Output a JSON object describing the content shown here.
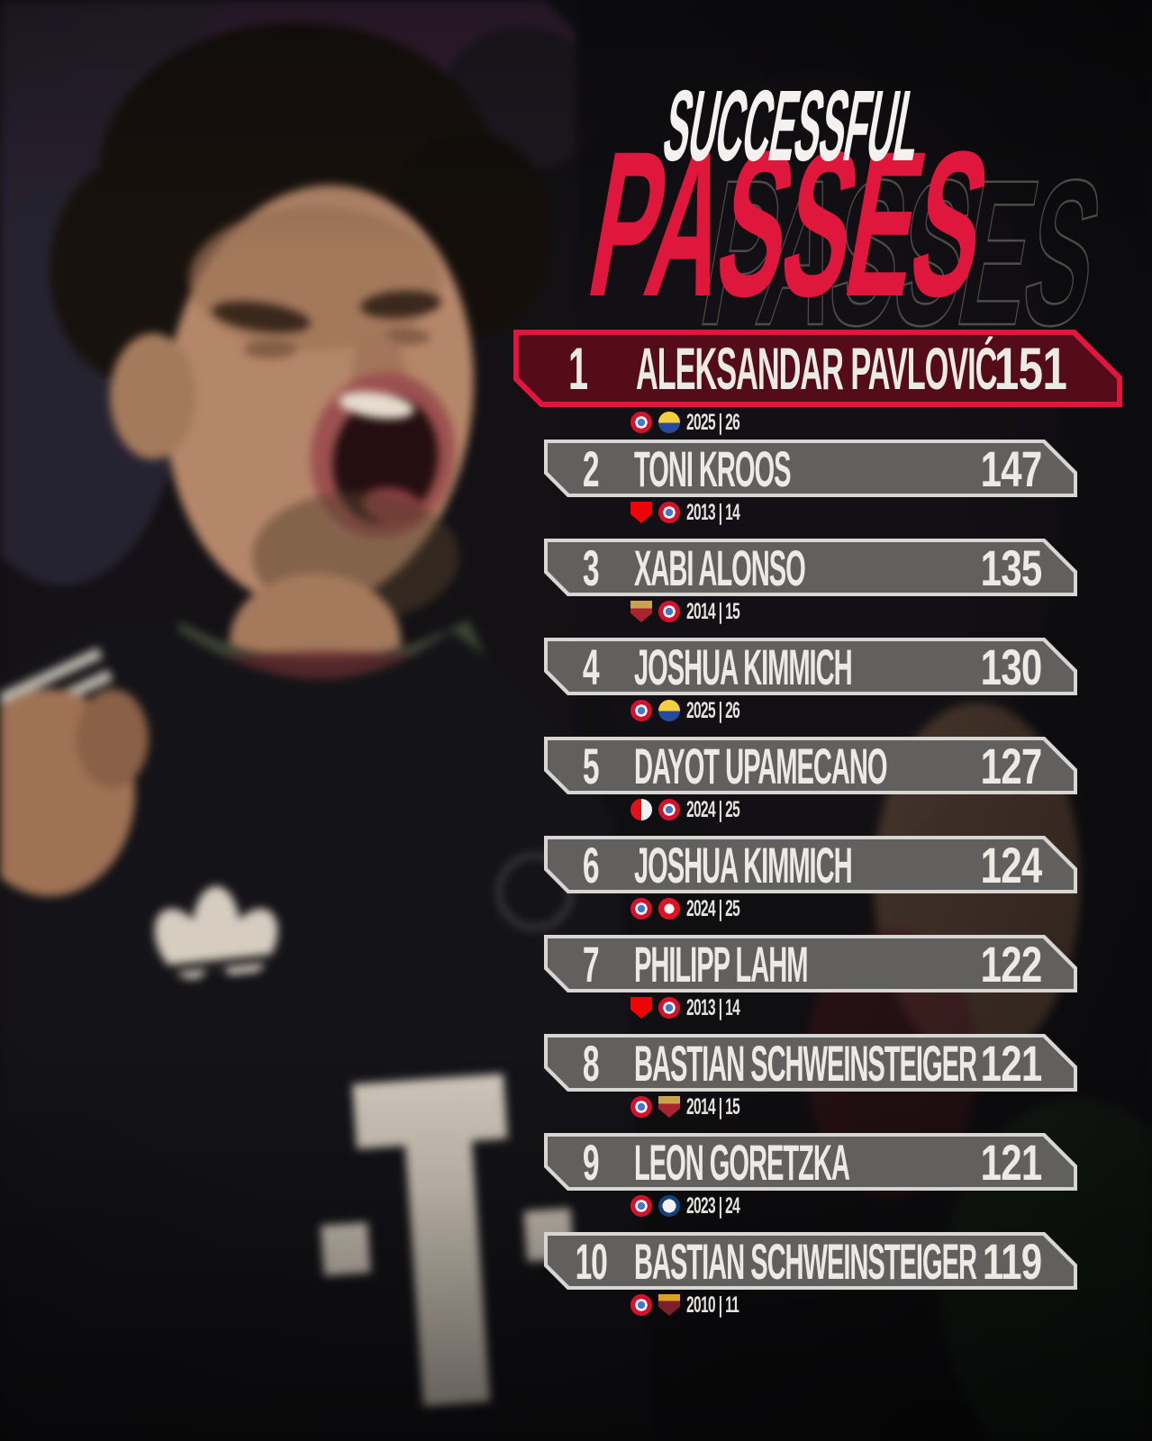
{
  "colors": {
    "accent_red": "#e0173c",
    "row_border": "#d8d6d2",
    "text_light": "#eceae5",
    "season_text": "#e4e2dd",
    "ghost_outline": "#55534f"
  },
  "heading": {
    "kicker": "SUCCESSFUL",
    "word": "PASSES",
    "ghost": "PASSES"
  },
  "ranking": [
    {
      "rank": "1",
      "player": "ALEKSANDAR PAVLOVIĆ",
      "value": "151",
      "season": "2025 | 26",
      "badges": [
        "bayern-munich",
        "union-saint-gilloise"
      ],
      "highlighted": true
    },
    {
      "rank": "2",
      "player": "TONI KROOS",
      "value": "147",
      "season": "2013 | 14",
      "badges": [
        "arsenal",
        "bayern-munich"
      ],
      "highlighted": false
    },
    {
      "rank": "3",
      "player": "XABI ALONSO",
      "value": "135",
      "season": "2014 | 15",
      "badges": [
        "cska-moscow",
        "bayern-munich"
      ],
      "highlighted": false
    },
    {
      "rank": "4",
      "player": "JOSHUA KIMMICH",
      "value": "130",
      "season": "2025 | 26",
      "badges": [
        "bayern-munich",
        "union-saint-gilloise"
      ],
      "highlighted": false
    },
    {
      "rank": "5",
      "player": "DAYOT UPAMECANO",
      "value": "127",
      "season": "2024 | 25",
      "badges": [
        "feyenoord",
        "bayern-munich"
      ],
      "highlighted": false
    },
    {
      "rank": "6",
      "player": "JOSHUA KIMMICH",
      "value": "124",
      "season": "2024 | 25",
      "badges": [
        "bayern-munich",
        "benfica"
      ],
      "highlighted": false
    },
    {
      "rank": "7",
      "player": "PHILIPP LAHM",
      "value": "122",
      "season": "2013 | 14",
      "badges": [
        "arsenal",
        "bayern-munich"
      ],
      "highlighted": false
    },
    {
      "rank": "8",
      "player": "BASTIAN SCHWEINSTEIGER",
      "value": "121",
      "season": "2014 | 15",
      "badges": [
        "bayern-munich",
        "cska-moscow"
      ],
      "highlighted": false
    },
    {
      "rank": "9",
      "player": "LEON GORETZKA",
      "value": "121",
      "season": "2023 | 24",
      "badges": [
        "bayern-munich",
        "fc-copenhagen"
      ],
      "highlighted": false
    },
    {
      "rank": "10",
      "player": "BASTIAN SCHWEINSTEIGER",
      "value": "119",
      "season": "2010 | 11",
      "badges": [
        "bayern-munich",
        "as-roma"
      ],
      "highlighted": false
    }
  ],
  "chart_data": {
    "type": "table",
    "title": "SUCCESSFUL PASSES",
    "columns": [
      "rank",
      "player",
      "successful_passes",
      "season"
    ],
    "rows": [
      [
        1,
        "ALEKSANDAR PAVLOVIĆ",
        151,
        "2025 | 26"
      ],
      [
        2,
        "TONI KROOS",
        147,
        "2013 | 14"
      ],
      [
        3,
        "XABI ALONSO",
        135,
        "2014 | 15"
      ],
      [
        4,
        "JOSHUA KIMMICH",
        130,
        "2025 | 26"
      ],
      [
        5,
        "DAYOT UPAMECANO",
        127,
        "2024 | 25"
      ],
      [
        6,
        "JOSHUA KIMMICH",
        124,
        "2024 | 25"
      ],
      [
        7,
        "PHILIPP LAHM",
        122,
        "2013 | 14"
      ],
      [
        8,
        "BASTIAN SCHWEINSTEIGER",
        121,
        "2014 | 15"
      ],
      [
        9,
        "LEON GORETZKA",
        121,
        "2023 | 24"
      ],
      [
        10,
        "BASTIAN SCHWEINSTEIGER",
        119,
        "2010 | 11"
      ]
    ]
  }
}
